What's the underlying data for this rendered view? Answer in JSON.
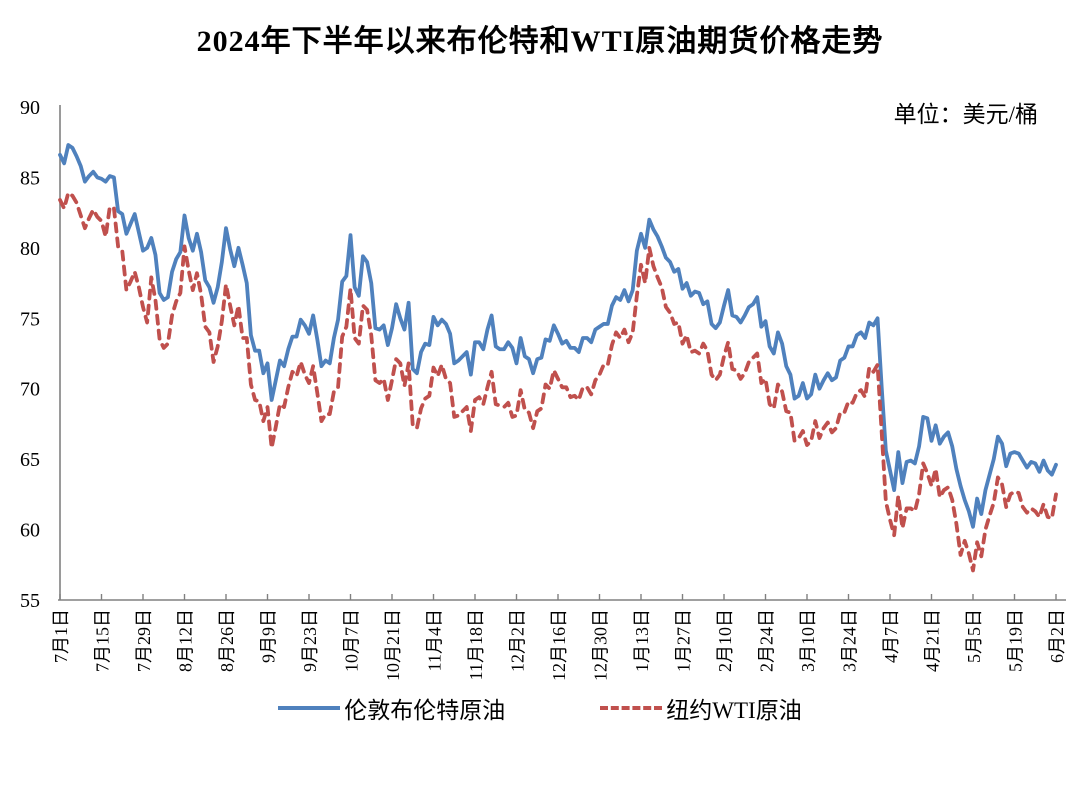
{
  "title": "2024年下半年以来布伦特和WTI原油期货价格走势",
  "unit_label": "单位：美元/桶",
  "legend": {
    "brent_label": "伦敦布伦特原油",
    "wti_label": "纽约WTI原油"
  },
  "colors": {
    "brent": "#4F81BD",
    "wti": "#C0504D",
    "axis": "#808080",
    "text": "#000000"
  },
  "chart_data": {
    "type": "line",
    "title": "2024年下半年以来布伦特和WTI原油期货价格走势",
    "unit": "美元/桶",
    "ylim": [
      55,
      90
    ],
    "y_ticks": [
      55,
      60,
      65,
      70,
      75,
      80,
      85,
      90
    ],
    "grid": false,
    "legend_position": "bottom",
    "x_axis_note": "daily trading-day index, 0 = 2024-07-01, 240 = 2025-06-02",
    "x_tick_indices": [
      0,
      10,
      20,
      30,
      40,
      50,
      60,
      70,
      80,
      90,
      100,
      110,
      120,
      130,
      140,
      150,
      160,
      170,
      180,
      190,
      200,
      210,
      220,
      230,
      240
    ],
    "x_tick_labels": [
      "7月1日",
      "7月15日",
      "7月29日",
      "8月12日",
      "8月26日",
      "9月9日",
      "9月23日",
      "10月7日",
      "10月21日",
      "11月4日",
      "11月18日",
      "12月2日",
      "12月16日",
      "12月30日",
      "1月13日",
      "1月27日",
      "2月10日",
      "2月24日",
      "3月10日",
      "3月24日",
      "4月7日",
      "4月21日",
      "5月5日",
      "5月19日",
      "6月2日"
    ],
    "series": [
      {
        "name": "伦敦布伦特原油",
        "style": "solid",
        "color": "#4F81BD",
        "values": [
          86.6,
          86.0,
          87.3,
          87.1,
          86.5,
          85.8,
          84.7,
          85.1,
          85.4,
          85.0,
          84.9,
          84.7,
          85.1,
          85.0,
          82.6,
          82.4,
          81.0,
          81.7,
          82.4,
          81.1,
          79.8,
          80.0,
          80.7,
          79.5,
          76.8,
          76.3,
          76.5,
          78.3,
          79.2,
          79.7,
          82.3,
          80.7,
          79.8,
          81.0,
          79.7,
          77.7,
          77.2,
          76.1,
          77.2,
          79.0,
          81.4,
          79.9,
          78.7,
          80.0,
          78.8,
          77.5,
          73.8,
          72.7,
          72.7,
          71.1,
          71.8,
          69.2,
          70.6,
          72.0,
          71.6,
          72.8,
          73.7,
          73.7,
          74.9,
          74.5,
          73.9,
          75.2,
          73.5,
          71.6,
          72.0,
          71.8,
          73.6,
          74.9,
          77.6,
          78.0,
          80.9,
          77.2,
          76.6,
          79.4,
          79.0,
          77.5,
          74.3,
          74.2,
          74.5,
          73.1,
          74.3,
          76.0,
          75.0,
          74.2,
          76.1,
          71.4,
          71.1,
          72.6,
          73.2,
          73.1,
          75.1,
          74.5,
          74.9,
          74.6,
          73.9,
          71.8,
          72.0,
          72.3,
          72.6,
          71.0,
          73.3,
          73.3,
          72.8,
          74.2,
          75.2,
          73.0,
          72.8,
          72.8,
          73.3,
          72.9,
          71.8,
          73.6,
          72.3,
          72.1,
          71.1,
          72.1,
          72.2,
          73.5,
          73.4,
          74.5,
          73.9,
          73.2,
          73.4,
          72.9,
          72.9,
          72.6,
          73.6,
          73.6,
          73.3,
          74.2,
          74.4,
          74.6,
          74.6,
          75.9,
          76.5,
          76.3,
          77.0,
          76.2,
          77.0,
          79.8,
          81.0,
          80.0,
          82.0,
          81.3,
          80.8,
          80.1,
          79.3,
          79.0,
          78.3,
          78.5,
          77.1,
          77.5,
          76.6,
          76.9,
          76.8,
          76.0,
          76.2,
          74.6,
          74.3,
          74.7,
          75.9,
          77.0,
          75.2,
          75.1,
          74.7,
          75.2,
          75.8,
          76.0,
          76.5,
          74.4,
          74.8,
          73.0,
          72.5,
          74.0,
          73.2,
          71.6,
          71.0,
          69.3,
          69.5,
          70.4,
          69.3,
          69.6,
          71.0,
          70.0,
          70.6,
          71.1,
          70.6,
          70.8,
          72.0,
          72.2,
          73.0,
          73.0,
          73.8,
          74.0,
          73.6,
          74.7,
          74.5,
          75.0,
          70.1,
          65.6,
          64.2,
          62.8,
          65.5,
          63.3,
          64.8,
          64.9,
          64.7,
          65.9,
          68.0,
          67.9,
          66.3,
          67.4,
          66.1,
          66.6,
          66.9,
          65.9,
          64.3,
          63.1,
          62.1,
          61.3,
          60.2,
          62.2,
          61.1,
          62.8,
          63.9,
          65.0,
          66.6,
          66.1,
          64.5,
          65.4,
          65.5,
          65.4,
          64.9,
          64.4,
          64.8,
          64.7,
          64.1,
          64.9,
          64.2,
          63.9,
          64.6
        ]
      },
      {
        "name": "纽约WTI原油",
        "style": "dashed",
        "color": "#C0504D",
        "values": [
          83.4,
          82.8,
          83.9,
          83.7,
          83.2,
          82.3,
          81.4,
          82.1,
          82.7,
          82.2,
          81.9,
          80.8,
          82.9,
          82.8,
          80.1,
          79.8,
          77.0,
          77.6,
          78.3,
          77.2,
          75.8,
          74.7,
          77.9,
          76.3,
          73.5,
          72.9,
          73.2,
          75.2,
          76.2,
          76.8,
          80.1,
          78.4,
          77.0,
          78.2,
          76.7,
          74.4,
          74.0,
          71.9,
          73.0,
          74.8,
          77.4,
          75.9,
          74.5,
          75.9,
          73.6,
          73.6,
          70.3,
          69.2,
          69.1,
          67.7,
          68.7,
          65.8,
          67.3,
          68.9,
          68.7,
          70.1,
          71.2,
          70.9,
          71.9,
          71.0,
          70.4,
          71.6,
          69.7,
          67.7,
          68.2,
          68.2,
          69.8,
          70.1,
          73.7,
          74.4,
          77.1,
          73.6,
          73.2,
          75.9,
          75.6,
          73.8,
          70.6,
          70.4,
          70.7,
          69.2,
          70.6,
          72.1,
          71.8,
          70.2,
          71.8,
          67.4,
          67.2,
          68.6,
          69.3,
          69.5,
          71.5,
          70.9,
          71.7,
          70.7,
          70.4,
          68.0,
          68.1,
          68.4,
          68.7,
          67.0,
          69.2,
          69.4,
          68.9,
          70.1,
          71.2,
          68.9,
          68.8,
          68.7,
          69.0,
          68.0,
          68.1,
          69.9,
          68.5,
          68.3,
          67.2,
          68.4,
          68.6,
          70.3,
          70.0,
          71.3,
          70.7,
          70.1,
          70.1,
          69.4,
          69.5,
          69.2,
          70.1,
          70.1,
          69.6,
          70.6,
          71.0,
          71.7,
          71.7,
          73.1,
          74.0,
          73.6,
          74.2,
          73.3,
          74.0,
          76.6,
          78.8,
          77.5,
          80.0,
          78.7,
          77.9,
          77.2,
          75.8,
          75.4,
          74.6,
          74.7,
          73.2,
          73.8,
          72.6,
          72.7,
          72.5,
          73.2,
          72.7,
          71.0,
          70.6,
          71.0,
          72.3,
          73.3,
          71.4,
          71.3,
          70.7,
          71.1,
          71.9,
          72.2,
          72.5,
          70.4,
          70.7,
          68.9,
          68.6,
          70.3,
          69.8,
          68.4,
          68.3,
          66.3,
          66.5,
          67.0,
          66.0,
          66.3,
          67.7,
          66.5,
          67.2,
          67.6,
          66.9,
          67.2,
          68.3,
          68.3,
          69.1,
          69.0,
          69.7,
          69.9,
          69.4,
          71.5,
          71.2,
          71.7,
          66.9,
          62.0,
          60.7,
          59.6,
          62.4,
          60.1,
          61.5,
          61.5,
          61.3,
          62.5,
          64.7,
          64.0,
          63.1,
          64.3,
          62.3,
          62.8,
          63.0,
          62.1,
          60.4,
          58.2,
          59.2,
          58.3,
          57.1,
          59.1,
          58.1,
          60.0,
          61.0,
          61.9,
          63.7,
          63.2,
          61.6,
          62.5,
          62.7,
          62.6,
          61.6,
          61.2,
          61.5,
          61.3,
          60.9,
          61.8,
          60.9,
          60.8,
          62.5
        ]
      }
    ]
  }
}
